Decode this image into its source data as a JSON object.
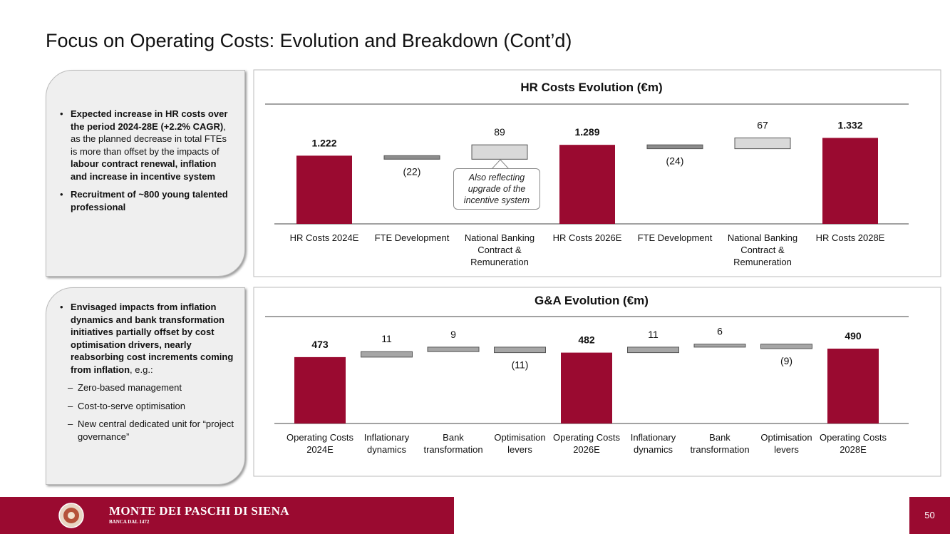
{
  "title": "Focus on Operating Costs: Evolution and Breakdown (Cont’d)",
  "left_panels": [
    {
      "bullets": [
        {
          "sub": false,
          "runs": [
            {
              "text": "Expected increase in HR costs over the period 2024-28E (+2.2% CAGR)",
              "bold": true
            },
            {
              "text": ", as the planned decrease in total FTEs is more than offset by the impacts of ",
              "bold": false
            },
            {
              "text": "labour contract renewal, inflation and increase in incentive system",
              "bold": true
            }
          ]
        },
        {
          "sub": false,
          "runs": [
            {
              "text": "Recruitment of ~800 young talented professional",
              "bold": true
            }
          ]
        }
      ]
    },
    {
      "bullets": [
        {
          "sub": false,
          "runs": [
            {
              "text": "Envisaged impacts from inflation dynamics and bank transformation initiatives partially offset by cost optimisation drivers, nearly reabsorbing cost increments coming from inflation",
              "bold": true
            },
            {
              "text": ", e.g.:",
              "bold": false
            }
          ]
        },
        {
          "sub": true,
          "runs": [
            {
              "text": "Zero-based management",
              "bold": false
            }
          ]
        },
        {
          "sub": true,
          "runs": [
            {
              "text": "Cost-to-serve optimisation",
              "bold": false
            }
          ]
        },
        {
          "sub": true,
          "runs": [
            {
              "text": "New central dedicated unit for “project governance”",
              "bold": false
            }
          ]
        }
      ]
    }
  ],
  "chart_data": [
    {
      "type": "waterfall",
      "title": "HR Costs Evolution (€m)",
      "categories": [
        "HR Costs 2024E",
        "FTE Development",
        "National Banking Contract & Remuneration",
        "HR Costs 2026E",
        "FTE Development",
        "National Banking Contract & Remuneration",
        "HR Costs 2028E"
      ],
      "measure": [
        "total",
        "relative",
        "relative",
        "total",
        "relative",
        "relative",
        "total"
      ],
      "values": [
        1222,
        -22,
        89,
        1289,
        -24,
        67,
        1332
      ],
      "value_labels": [
        "1.222",
        "(22)",
        "89",
        "1.289",
        "(24)",
        "67",
        "1.332"
      ],
      "colors": [
        "#9a0a30",
        "#8c8c8c",
        "#d9d9d9",
        "#9a0a30",
        "#8c8c8c",
        "#d9d9d9",
        "#9a0a30"
      ],
      "ylim": [
        800,
        1400
      ],
      "annotation": "Also reflecting upgrade of the incentive system"
    },
    {
      "type": "waterfall",
      "title": "G&A Evolution (€m)",
      "categories": [
        "Operating Costs 2024E",
        "Inflationary dynamics",
        "Bank transformation",
        "Optimisation levers",
        "Operating Costs 2026E",
        "Inflationary dynamics",
        "Bank transformation",
        "Optimisation levers",
        "Operating Costs 2028E"
      ],
      "measure": [
        "total",
        "relative",
        "relative",
        "relative",
        "total",
        "relative",
        "relative",
        "relative",
        "total"
      ],
      "values": [
        473,
        11,
        9,
        -11,
        482,
        11,
        6,
        -9,
        490
      ],
      "value_labels": [
        "473",
        "11",
        "9",
        "(11)",
        "482",
        "11",
        "6",
        "(9)",
        "490"
      ],
      "colors": [
        "#9a0a30",
        "#a6a6a6",
        "#a6a6a6",
        "#a6a6a6",
        "#9a0a30",
        "#a6a6a6",
        "#a6a6a6",
        "#a6a6a6",
        "#9a0a30"
      ],
      "ylim": [
        340,
        500
      ]
    }
  ],
  "footer": {
    "brand": "MONTE DEI PASCHI DI SIENA",
    "tagline": "BANCA DAL 1472",
    "page": "50"
  }
}
